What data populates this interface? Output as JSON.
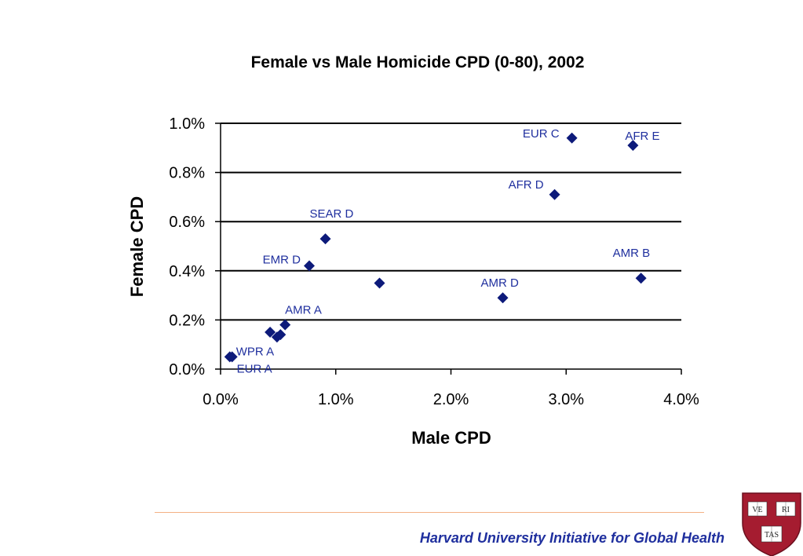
{
  "chart_data": {
    "type": "scatter",
    "title": "Female vs Male Homicide CPD (0-80), 2002",
    "xlabel": "Male CPD",
    "ylabel": "Female CPD",
    "xlim": [
      0,
      4.0
    ],
    "ylim": [
      0,
      1.0
    ],
    "xticks": [
      "0.0%",
      "1.0%",
      "2.0%",
      "3.0%",
      "4.0%"
    ],
    "yticks": [
      "0.0%",
      "0.2%",
      "0.4%",
      "0.6%",
      "0.8%",
      "1.0%"
    ],
    "grid": "horizontal",
    "marker_color": "#0d1a7a",
    "label_color": "#1f2f9e",
    "points": [
      {
        "x": 0.08,
        "y": 0.05,
        "label": "WPR A"
      },
      {
        "x": 0.1,
        "y": 0.05,
        "label": "EUR A"
      },
      {
        "x": 0.43,
        "y": 0.15,
        "label": ""
      },
      {
        "x": 0.49,
        "y": 0.13,
        "label": ""
      },
      {
        "x": 0.52,
        "y": 0.14,
        "label": ""
      },
      {
        "x": 0.56,
        "y": 0.18,
        "label": "AMR A"
      },
      {
        "x": 0.77,
        "y": 0.42,
        "label": "EMR D"
      },
      {
        "x": 0.91,
        "y": 0.53,
        "label": "SEAR D"
      },
      {
        "x": 1.38,
        "y": 0.35,
        "label": ""
      },
      {
        "x": 2.45,
        "y": 0.29,
        "label": "AMR D"
      },
      {
        "x": 2.9,
        "y": 0.71,
        "label": "AFR D"
      },
      {
        "x": 3.05,
        "y": 0.94,
        "label": "EUR C"
      },
      {
        "x": 3.58,
        "y": 0.91,
        "label": "AFR E"
      },
      {
        "x": 3.65,
        "y": 0.37,
        "label": "AMR B"
      }
    ]
  },
  "footer": {
    "text": "Harvard University Initiative for Global Health",
    "line_color": "#f4b183",
    "text_color": "#1f2f9e"
  },
  "logo": {
    "icon": "harvard-shield-icon",
    "words": [
      "VE",
      "RI",
      "TAS"
    ],
    "color": "#a51c30"
  }
}
